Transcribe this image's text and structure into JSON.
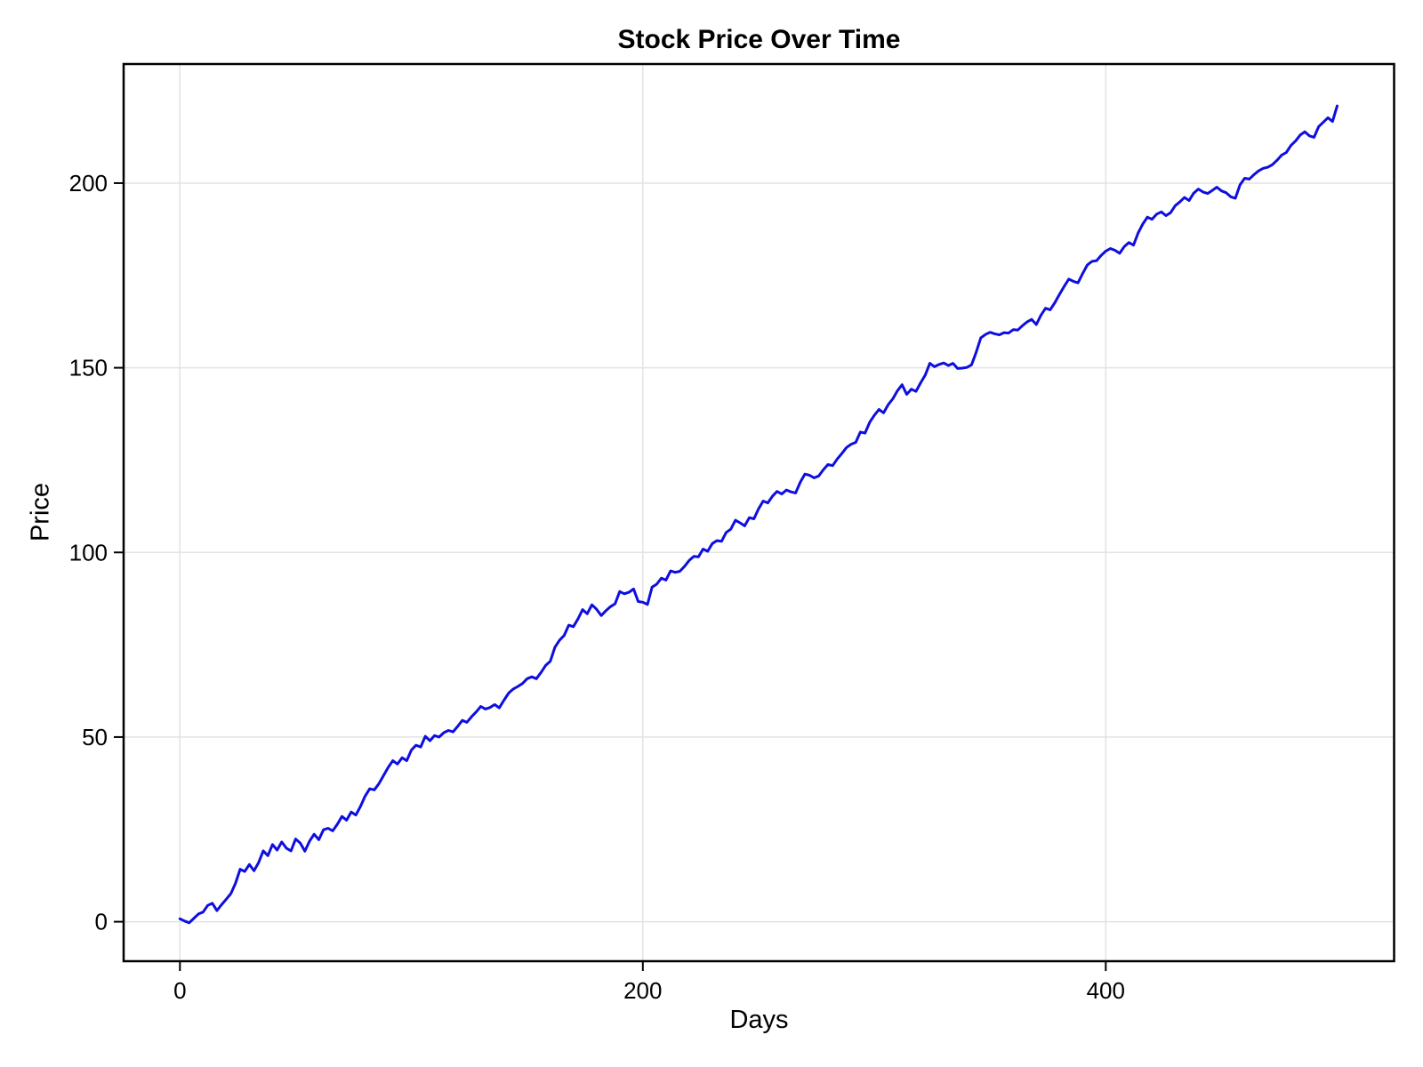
{
  "chart_data": {
    "type": "line",
    "title": "Stock Price Over Time",
    "xlabel": "Days",
    "ylabel": "Price",
    "legend": "none",
    "grid": true,
    "line_color": "#0e0ee0",
    "grid_color": "#e3e3e3",
    "frame_color": "#000000",
    "background_color": "#ffffff",
    "xticks": [
      0,
      200,
      400
    ],
    "yticks": [
      0,
      50,
      100,
      150,
      200
    ],
    "xlim": [
      -24,
      525
    ],
    "ylim": [
      -11,
      232
    ],
    "x_start": 0,
    "x_step": 2,
    "x_end": 500,
    "series_name": "Price",
    "values": [
      0.8,
      0.2,
      -0.3,
      0.9,
      2.1,
      2.6,
      4.4,
      5.0,
      3.0,
      4.6,
      6.1,
      7.6,
      10.4,
      14.2,
      13.6,
      15.5,
      13.8,
      16.0,
      19.2,
      17.9,
      20.9,
      19.4,
      21.6,
      19.9,
      19.2,
      22.4,
      21.3,
      19.1,
      21.8,
      23.7,
      22.2,
      24.9,
      25.3,
      24.6,
      26.4,
      28.5,
      27.5,
      29.7,
      28.9,
      31.2,
      34.0,
      36.0,
      35.7,
      37.4,
      39.6,
      41.8,
      43.6,
      42.7,
      44.4,
      43.6,
      46.5,
      47.8,
      47.3,
      50.2,
      49.0,
      50.4,
      50.0,
      51.2,
      51.8,
      51.4,
      52.9,
      54.5,
      54.0,
      55.5,
      56.8,
      58.3,
      57.6,
      58.0,
      58.8,
      57.9,
      60.0,
      61.9,
      63.0,
      63.7,
      64.5,
      65.8,
      66.3,
      65.8,
      67.5,
      69.4,
      70.5,
      74.3,
      76.2,
      77.5,
      80.3,
      79.9,
      82.0,
      84.5,
      83.4,
      85.8,
      84.6,
      82.9,
      84.2,
      85.3,
      86.1,
      89.4,
      88.8,
      89.2,
      90.1,
      86.7,
      86.5,
      85.9,
      90.6,
      91.4,
      93.0,
      92.5,
      95.0,
      94.6,
      94.9,
      96.2,
      97.8,
      98.9,
      98.8,
      100.9,
      100.3,
      102.4,
      103.2,
      103.0,
      105.4,
      106.3,
      108.7,
      108.0,
      107.2,
      109.4,
      109.1,
      111.8,
      113.9,
      113.4,
      115.2,
      116.5,
      115.8,
      116.9,
      116.4,
      116.1,
      119.0,
      121.2,
      120.9,
      120.2,
      120.7,
      122.4,
      123.8,
      123.5,
      125.3,
      126.8,
      128.4,
      129.3,
      129.8,
      132.6,
      132.3,
      135.2,
      137.1,
      138.7,
      137.8,
      140.0,
      141.6,
      143.8,
      145.4,
      142.8,
      144.2,
      143.6,
      145.9,
      148.0,
      151.2,
      150.3,
      150.9,
      151.3,
      150.6,
      151.2,
      149.8,
      149.9,
      150.1,
      150.8,
      154.2,
      158.1,
      159.0,
      159.6,
      159.2,
      158.9,
      159.5,
      159.4,
      160.3,
      160.2,
      161.4,
      162.4,
      163.1,
      161.7,
      164.2,
      166.1,
      165.7,
      167.6,
      169.9,
      172.0,
      174.0,
      173.4,
      173.0,
      175.5,
      177.8,
      178.8,
      179.0,
      180.4,
      181.6,
      182.3,
      181.8,
      181.0,
      182.8,
      183.9,
      183.2,
      186.5,
      188.9,
      190.8,
      190.2,
      191.6,
      192.2,
      191.2,
      192.0,
      193.9,
      194.9,
      196.1,
      195.3,
      197.3,
      198.4,
      197.6,
      197.2,
      198.0,
      198.9,
      197.9,
      197.4,
      196.3,
      195.9,
      199.5,
      201.3,
      201.1,
      202.3,
      203.3,
      204.0,
      204.3,
      205.0,
      206.2,
      207.6,
      208.3,
      210.2,
      211.4,
      213.0,
      213.9,
      212.8,
      212.4,
      215.3,
      216.5,
      217.7,
      216.7,
      220.9
    ]
  }
}
